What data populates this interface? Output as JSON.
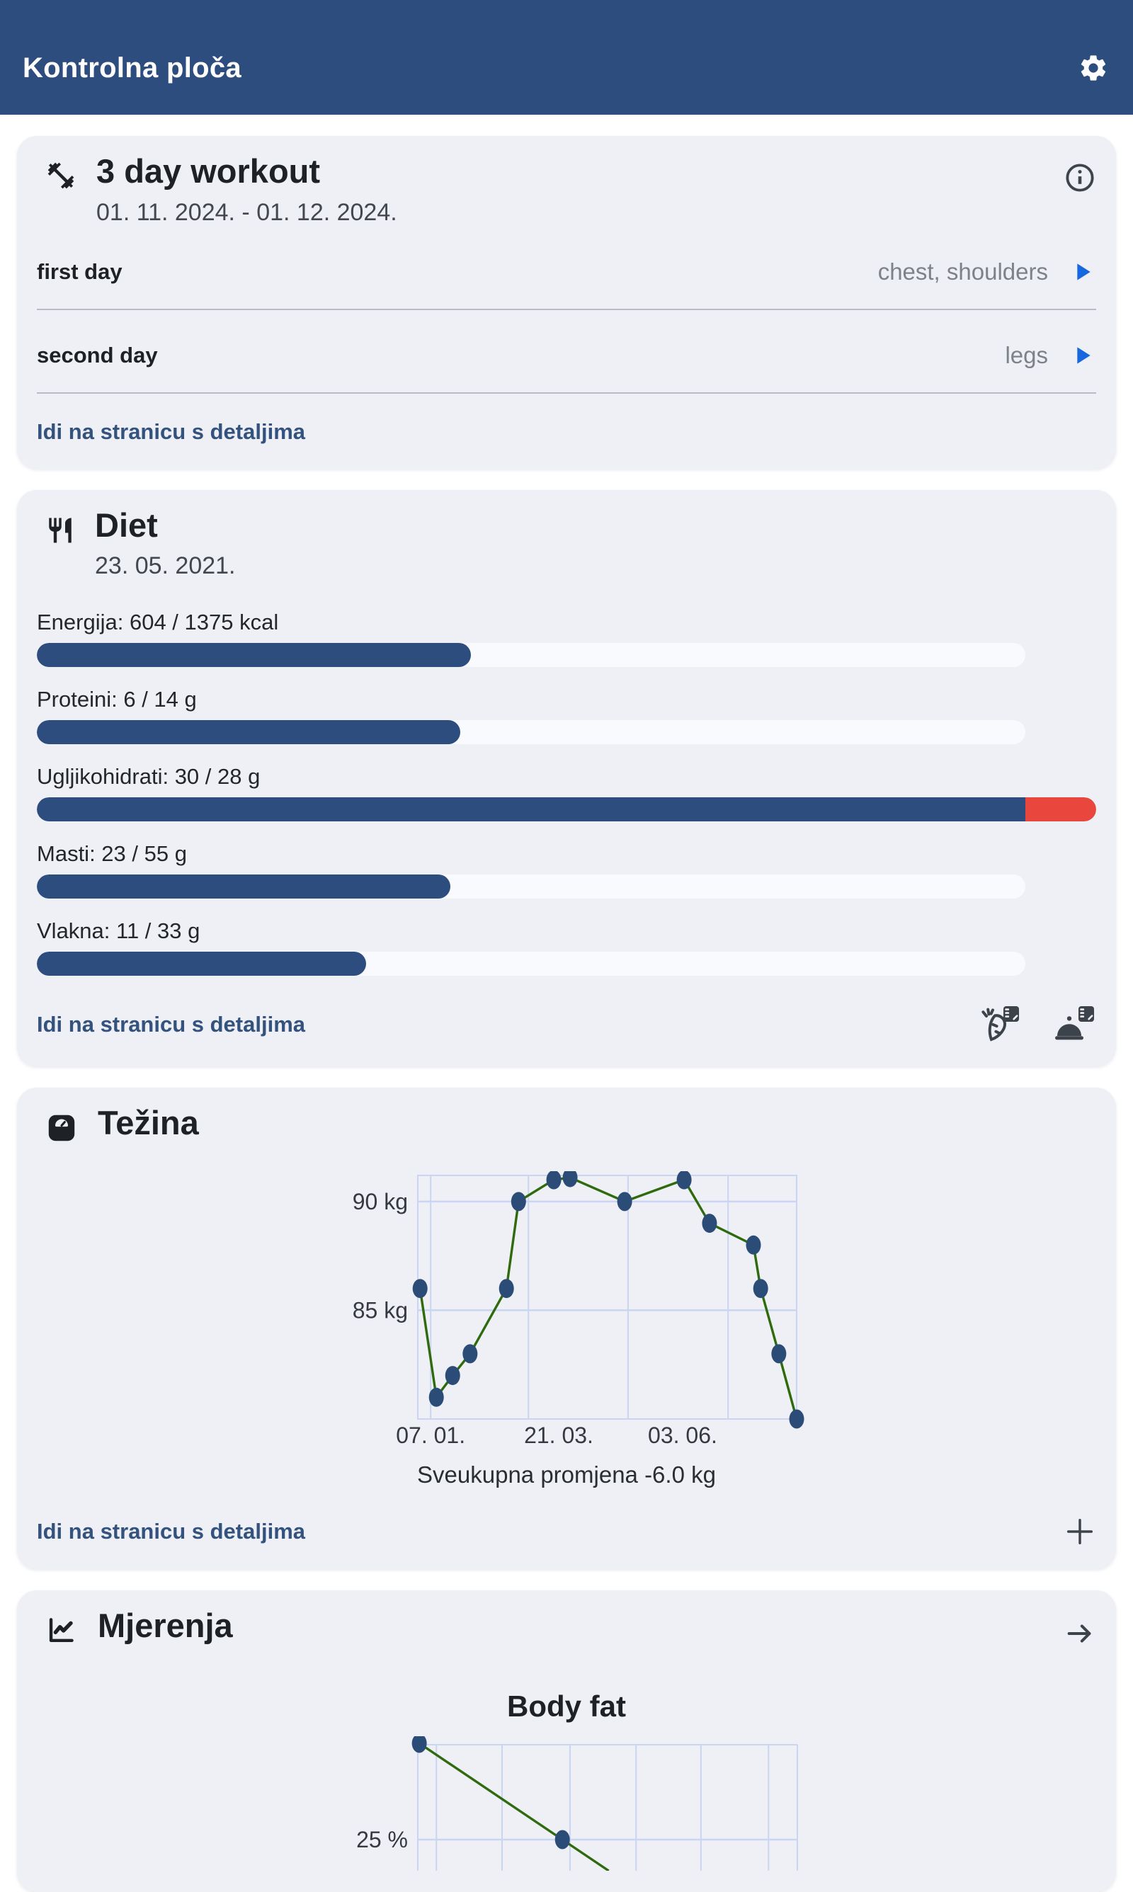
{
  "app_bar": {
    "title": "Kontrolna ploča"
  },
  "workout_card": {
    "title": "3 day workout",
    "date_range": "01. 11. 2024. - 01. 12. 2024.",
    "days": [
      {
        "name": "first day",
        "muscles": "chest, shoulders"
      },
      {
        "name": "second day",
        "muscles": "legs"
      }
    ],
    "details_link": "Idi na stranicu s detaljima"
  },
  "diet_card": {
    "title": "Diet",
    "date": "23. 05. 2021.",
    "macros": [
      {
        "label": "Energija: 604 / 1375 kcal",
        "value": 604,
        "goal": 1375
      },
      {
        "label": "Proteini: 6 / 14 g",
        "value": 6,
        "goal": 14
      },
      {
        "label": "Ugljikohidrati: 30 / 28 g",
        "value": 30,
        "goal": 28
      },
      {
        "label": "Masti: 23 / 55 g",
        "value": 23,
        "goal": 55
      },
      {
        "label": "Vlakna: 11 / 33 g",
        "value": 11,
        "goal": 33
      }
    ],
    "details_link": "Idi na stranicu s detaljima"
  },
  "weight_card": {
    "title": "Težina",
    "caption": "Sveukupna promjena -6.0 kg",
    "details_link": "Idi na stranicu s detaljima"
  },
  "measurements_card": {
    "title": "Mjerenja",
    "chart_title": "Body fat"
  },
  "chart_data": [
    {
      "type": "line",
      "title": "Težina",
      "ylabel": "kg",
      "ylim": [
        80,
        91.2
      ],
      "grid": true,
      "y_ticks": [
        {
          "label": "90 kg",
          "value": 90
        },
        {
          "label": "85 kg",
          "value": 85
        }
      ],
      "x_ticks": [
        {
          "label": "07. 01.",
          "pos": 0.034
        },
        {
          "label": "21. 03.",
          "pos": 0.372
        },
        {
          "label": "03. 06.",
          "pos": 0.699
        }
      ],
      "x_gridlines": [
        0.034,
        0.292,
        0.555,
        0.819
      ],
      "points": [
        {
          "x": 0.006,
          "y": 86
        },
        {
          "x": 0.049,
          "y": 81
        },
        {
          "x": 0.092,
          "y": 82
        },
        {
          "x": 0.138,
          "y": 83
        },
        {
          "x": 0.234,
          "y": 86
        },
        {
          "x": 0.266,
          "y": 90
        },
        {
          "x": 0.359,
          "y": 91
        },
        {
          "x": 0.402,
          "y": 91.1
        },
        {
          "x": 0.546,
          "y": 90
        },
        {
          "x": 0.703,
          "y": 91
        },
        {
          "x": 0.77,
          "y": 89
        },
        {
          "x": 0.886,
          "y": 88
        },
        {
          "x": 0.905,
          "y": 86
        },
        {
          "x": 0.953,
          "y": 83
        },
        {
          "x": 1.0,
          "y": 80
        }
      ],
      "caption": "Sveukupna promjena -6.0 kg",
      "line_color": "#2f6b0e",
      "point_color": "#2c4c78",
      "grid_color": "#c9d5f2"
    },
    {
      "type": "line",
      "title": "Body fat",
      "ylabel": "%",
      "y_ticks": [
        {
          "label": "25 %",
          "value": 25
        }
      ],
      "x_gridlines": [
        0.049,
        0.222,
        0.401,
        0.575,
        0.746,
        0.924
      ],
      "points": [
        {
          "x": 0.004,
          "y": 30
        },
        {
          "x": 0.381,
          "y": 25
        }
      ],
      "truncated_bottom": true,
      "line_color": "#2f6b0e",
      "point_color": "#2c4c78",
      "grid_color": "#c9d5f2"
    }
  ],
  "colors": {
    "appbar": "#2d4d7e",
    "card_bg": "#eef0f5",
    "bar_fill": "#2d4d7e",
    "bar_track": "#f9fafe",
    "bar_over": "#e9473d",
    "link": "#33527e",
    "play": "#1767e0",
    "icon_gray": "#3d434b"
  },
  "icons": [
    "gear-icon",
    "dumbbell-icon",
    "info-icon",
    "play-icon",
    "restaurant-icon",
    "carrot-add-icon",
    "meal-add-icon",
    "weight-scale-icon",
    "plus-icon",
    "line-chart-icon",
    "arrow-right-icon"
  ]
}
